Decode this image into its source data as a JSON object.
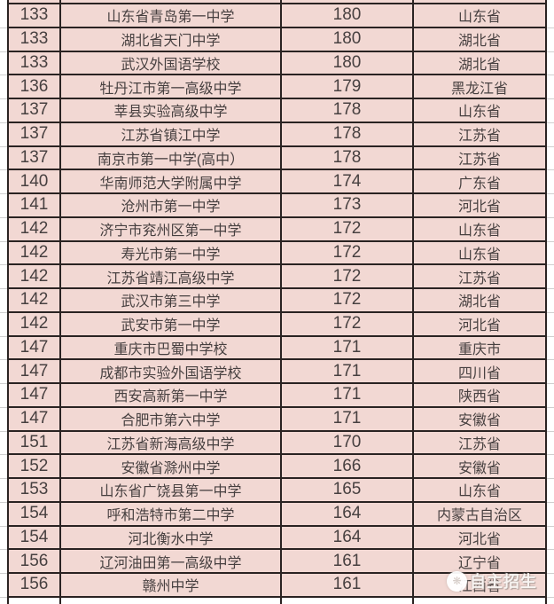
{
  "chart_data": {
    "type": "table",
    "columns": [
      "rank",
      "school",
      "score",
      "province"
    ],
    "rows": [
      {
        "rank": 133,
        "school": "山东省青岛第一中学",
        "score": 180,
        "province": "山东省"
      },
      {
        "rank": 133,
        "school": "湖北省天门中学",
        "score": 180,
        "province": "湖北省"
      },
      {
        "rank": 133,
        "school": "武汉外国语学校",
        "score": 180,
        "province": "湖北省"
      },
      {
        "rank": 136,
        "school": "牡丹江市第一高级中学",
        "score": 179,
        "province": "黑龙江省"
      },
      {
        "rank": 137,
        "school": "莘县实验高级中学",
        "score": 178,
        "province": "山东省"
      },
      {
        "rank": 137,
        "school": "江苏省镇江中学",
        "score": 178,
        "province": "江苏省"
      },
      {
        "rank": 137,
        "school": "南京市第一中学(高中）",
        "score": 178,
        "province": "江苏省"
      },
      {
        "rank": 140,
        "school": "华南师范大学附属中学",
        "score": 174,
        "province": "广东省"
      },
      {
        "rank": 141,
        "school": "沧州市第一中学",
        "score": 173,
        "province": "河北省"
      },
      {
        "rank": 142,
        "school": "济宁市兖州区第一中学",
        "score": 172,
        "province": "山东省"
      },
      {
        "rank": 142,
        "school": "寿光市第一中学",
        "score": 172,
        "province": "山东省"
      },
      {
        "rank": 142,
        "school": "江苏省靖江高级中学",
        "score": 172,
        "province": "江苏省"
      },
      {
        "rank": 142,
        "school": "武汉市第三中学",
        "score": 172,
        "province": "湖北省"
      },
      {
        "rank": 142,
        "school": "武安市第一中学",
        "score": 172,
        "province": "河北省"
      },
      {
        "rank": 147,
        "school": "重庆市巴蜀中学校",
        "score": 171,
        "province": "重庆市"
      },
      {
        "rank": 147,
        "school": "成都市实验外国语学校",
        "score": 171,
        "province": "四川省"
      },
      {
        "rank": 147,
        "school": "西安高新第一中学",
        "score": 171,
        "province": "陕西省"
      },
      {
        "rank": 147,
        "school": "合肥市第六中学",
        "score": 171,
        "province": "安徽省"
      },
      {
        "rank": 151,
        "school": "江苏省新海高级中学",
        "score": 170,
        "province": "江苏省"
      },
      {
        "rank": 152,
        "school": "安徽省滁州中学",
        "score": 166,
        "province": "安徽省"
      },
      {
        "rank": 153,
        "school": "山东省广饶县第一中学",
        "score": 165,
        "province": "山东省"
      },
      {
        "rank": 154,
        "school": "呼和浩特市第二中学",
        "score": 164,
        "province": "内蒙古自治区"
      },
      {
        "rank": 154,
        "school": "河北衡水中学",
        "score": 164,
        "province": "河北省"
      },
      {
        "rank": 156,
        "school": "辽河油田第一高级中学",
        "score": 161,
        "province": "辽宁省"
      },
      {
        "rank": 156,
        "school": "赣州中学",
        "score": 161,
        "province": "江西省"
      }
    ]
  },
  "watermark": {
    "label": "自主招生",
    "icon_glyph": "❋"
  },
  "colors": {
    "cell_background": "#f2d8d3",
    "grid_border": "#2a2322",
    "text": "#474040",
    "margin_gridline": "#cfcfcf",
    "watermark_text": "#fbf8f6"
  }
}
